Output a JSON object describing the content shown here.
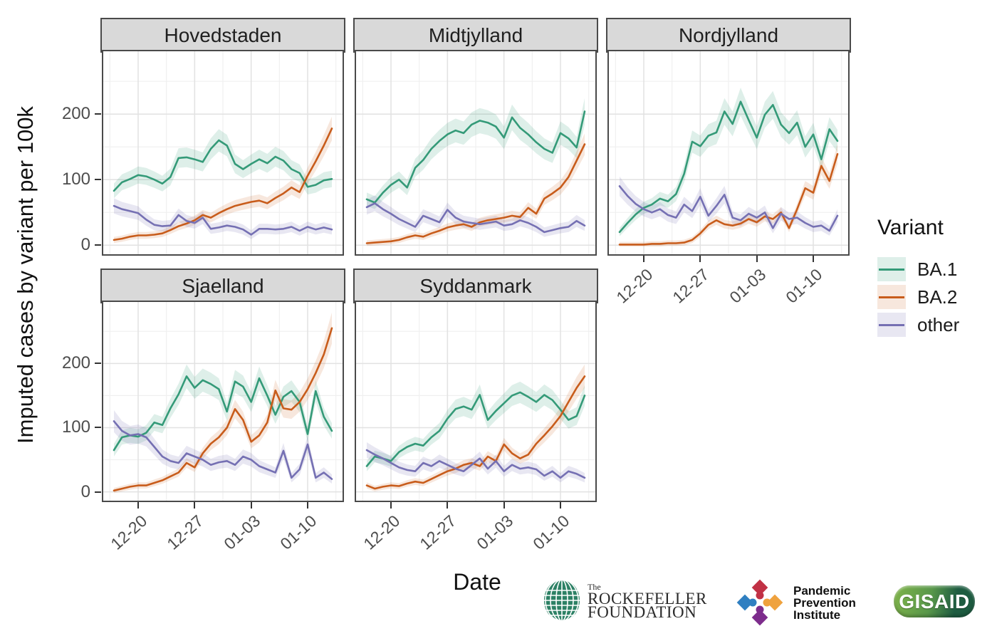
{
  "chart_data": {
    "type": "line",
    "x_axis": {
      "label": "Date",
      "tick_labels": [
        "12-20",
        "12-27",
        "01-03",
        "01-10"
      ],
      "tick_indices": [
        3,
        10,
        17,
        24
      ],
      "n_points": 28
    },
    "y_axis": {
      "label": "Imputed cases by variant per 100k",
      "ticks": [
        0,
        100,
        200
      ],
      "ylim": [
        -16,
        298
      ]
    },
    "legend": {
      "title": "Variant",
      "entries": [
        {
          "label": "BA.1",
          "color": "#349a78",
          "fill": "rgba(52,154,120,0.16)"
        },
        {
          "label": "BA.2",
          "color": "#c85c1b",
          "fill": "rgba(200,92,27,0.15)"
        },
        {
          "label": "other",
          "color": "#7570b3",
          "fill": "rgba(117,112,179,0.17)"
        }
      ]
    },
    "series_meta": [
      {
        "name": "BA.1",
        "color": "#349a78",
        "fill": "rgba(52,154,120,0.16)",
        "ribbon": {
          "base": 5,
          "frac": 0.075
        }
      },
      {
        "name": "BA.2",
        "color": "#c85c1b",
        "fill": "rgba(200,92,27,0.15)",
        "ribbon": {
          "base": 4,
          "frac": 0.08
        }
      },
      {
        "name": "other",
        "color": "#7570b3",
        "fill": "rgba(117,112,179,0.17)",
        "ribbon": {
          "base": 5,
          "frac": 0.11
        }
      }
    ],
    "grid": true,
    "legend_position": "right",
    "facets": [
      {
        "title": "Hovedstaden",
        "row": 0,
        "col": 0,
        "series": {
          "BA.1": [
            83,
            96,
            101,
            107,
            105,
            100,
            94,
            104,
            133,
            134,
            131,
            127,
            147,
            160,
            152,
            124,
            116,
            124,
            131,
            125,
            135,
            129,
            116,
            110,
            89,
            92,
            99,
            101
          ],
          "BA.2": [
            8,
            10,
            13,
            15,
            15,
            16,
            18,
            23,
            29,
            33,
            38,
            46,
            42,
            49,
            55,
            60,
            63,
            66,
            68,
            64,
            72,
            79,
            88,
            81,
            106,
            128,
            152,
            178
          ],
          "other": [
            60,
            55,
            52,
            49,
            39,
            31,
            29,
            30,
            46,
            37,
            34,
            42,
            25,
            27,
            30,
            28,
            24,
            16,
            25,
            25,
            24,
            25,
            28,
            22,
            28,
            24,
            27,
            24
          ]
        }
      },
      {
        "title": "Midtjylland",
        "row": 0,
        "col": 1,
        "series": {
          "BA.1": [
            70,
            65,
            80,
            92,
            100,
            88,
            118,
            130,
            147,
            159,
            169,
            175,
            171,
            184,
            190,
            187,
            181,
            164,
            195,
            179,
            169,
            157,
            147,
            141,
            171,
            163,
            149,
            204
          ],
          "BA.2": [
            3,
            4,
            5,
            6,
            8,
            12,
            15,
            13,
            18,
            22,
            27,
            30,
            32,
            28,
            35,
            38,
            40,
            42,
            45,
            43,
            57,
            48,
            71,
            79,
            88,
            104,
            129,
            154
          ],
          "other": [
            58,
            64,
            55,
            48,
            40,
            34,
            28,
            45,
            40,
            35,
            54,
            42,
            36,
            34,
            32,
            34,
            36,
            30,
            32,
            38,
            34,
            28,
            20,
            23,
            26,
            28,
            37,
            30
          ]
        }
      },
      {
        "title": "Nordjylland",
        "row": 0,
        "col": 2,
        "series": {
          "BA.1": [
            20,
            34,
            47,
            57,
            62,
            71,
            67,
            78,
            109,
            158,
            151,
            167,
            172,
            204,
            185,
            219,
            191,
            164,
            199,
            214,
            184,
            171,
            187,
            150,
            169,
            131,
            177,
            159
          ],
          "BA.2": [
            1,
            1,
            1,
            1,
            2,
            2,
            3,
            3,
            4,
            8,
            18,
            31,
            38,
            32,
            30,
            33,
            40,
            35,
            44,
            40,
            50,
            26,
            55,
            87,
            80,
            121,
            98,
            139
          ],
          "other": [
            90,
            75,
            63,
            55,
            50,
            55,
            46,
            42,
            62,
            52,
            74,
            45,
            60,
            77,
            42,
            38,
            48,
            42,
            50,
            26,
            48,
            40,
            42,
            34,
            28,
            30,
            22,
            45
          ]
        }
      },
      {
        "title": "Sjaelland",
        "row": 1,
        "col": 0,
        "series": {
          "BA.1": [
            65,
            85,
            88,
            86,
            92,
            108,
            104,
            130,
            152,
            180,
            162,
            174,
            168,
            160,
            125,
            172,
            164,
            140,
            177,
            150,
            120,
            148,
            157,
            140,
            90,
            157,
            117,
            95
          ],
          "BA.2": [
            2,
            5,
            8,
            10,
            10,
            14,
            18,
            24,
            30,
            45,
            38,
            60,
            75,
            85,
            100,
            129,
            112,
            78,
            88,
            108,
            158,
            130,
            128,
            140,
            160,
            185,
            214,
            255
          ],
          "other": [
            110,
            95,
            88,
            90,
            85,
            70,
            55,
            48,
            45,
            60,
            55,
            50,
            42,
            46,
            48,
            42,
            55,
            50,
            40,
            35,
            30,
            64,
            22,
            35,
            74,
            22,
            30,
            20
          ]
        }
      },
      {
        "title": "Syddanmark",
        "row": 1,
        "col": 1,
        "series": {
          "BA.1": [
            40,
            55,
            52,
            48,
            62,
            70,
            75,
            72,
            85,
            95,
            114,
            129,
            133,
            128,
            151,
            112,
            126,
            138,
            150,
            155,
            148,
            140,
            151,
            143,
            128,
            112,
            118,
            150
          ],
          "BA.2": [
            10,
            5,
            8,
            10,
            9,
            13,
            16,
            14,
            20,
            26,
            32,
            36,
            42,
            45,
            40,
            55,
            48,
            74,
            60,
            52,
            58,
            75,
            88,
            102,
            118,
            140,
            162,
            180
          ],
          "other": [
            65,
            58,
            52,
            45,
            38,
            34,
            32,
            45,
            40,
            48,
            42,
            36,
            32,
            42,
            52,
            36,
            48,
            32,
            42,
            36,
            38,
            35,
            25,
            32,
            22,
            32,
            28,
            22
          ]
        }
      }
    ]
  },
  "logos": {
    "rockefeller": {
      "the": "The",
      "line1": "ROCKEFELLER",
      "line2": "FOUNDATION",
      "globe_color": "#2d8165"
    },
    "ppi": {
      "line1": "Pandemic",
      "line2": "Prevention",
      "line3": "Institute",
      "colors": {
        "red": "#c13145",
        "blue": "#2f7fc1",
        "orange": "#efa23e",
        "purple": "#7d2c8c"
      }
    },
    "gisaid": {
      "label": "GISAID",
      "green_light": "#7fb34a",
      "green_dark": "#1c5a3f"
    }
  }
}
